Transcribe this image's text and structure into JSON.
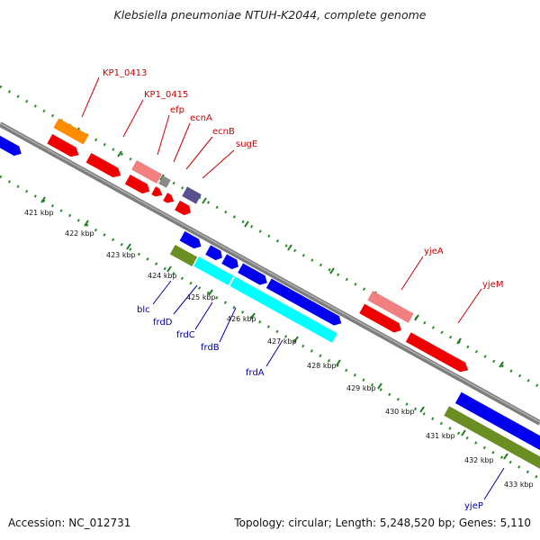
{
  "title": "Klebsiella pneumoniae NTUH-K2044, complete genome",
  "footer": {
    "accession": "Accession: NC_012731",
    "topology": "Topology: circular; Length: 5,248,520 bp; Genes: 5,110"
  },
  "colors": {
    "backbone": "#808080",
    "tick_major": "#2e8b2e",
    "tick_minor": "#1e7a1e",
    "label_top": "#cc0000",
    "label_bottom": "#0000aa",
    "red": "#f00000",
    "pink": "#f08080",
    "orange": "#ff8c00",
    "gray": "#8a8a8a",
    "slate": "#5a4f8f",
    "blue": "#0000ee",
    "olive": "#6b8e23",
    "cyan": "#00ffff"
  },
  "kbp_labels": [
    "421 kbp",
    "422 kbp",
    "423 kbp",
    "424 kbp",
    "425 kbp",
    "426 kbp",
    "427 kbp",
    "428 kbp",
    "429 kbp",
    "430 kbp",
    "431 kbp",
    "432 kbp",
    "433 kbp"
  ],
  "gene_labels_top": [
    "KP1_0413",
    "KP1_0415",
    "efp",
    "ecnA",
    "ecnB",
    "sugE",
    "yjeA",
    "yjeM"
  ],
  "gene_labels_bottom": [
    "blc",
    "frdD",
    "frdC",
    "frdB",
    "frdA",
    "yjeP"
  ]
}
